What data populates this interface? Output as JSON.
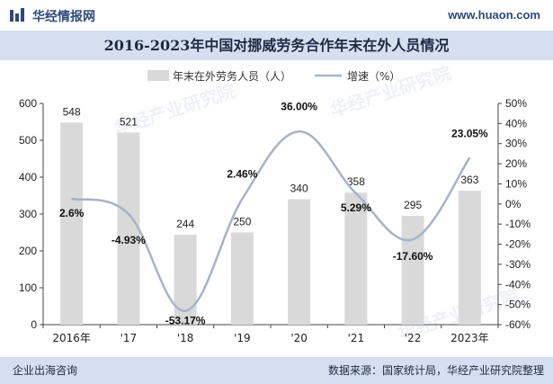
{
  "header": {
    "site_name": "华经情报网",
    "url": "www.huaon.com",
    "logo_icon": "bar-logo-icon"
  },
  "title": "2016-2023年中国对挪威劳务合作年末在外人员情况",
  "footer": {
    "left": "企业出海咨询",
    "right": "数据来源：国家统计局，华经产业研究院整理"
  },
  "watermark": "华经产业研究院",
  "colors": {
    "bar": "#d9d9d9",
    "line": "#a7b2cb",
    "title_bg": "#d6dfef",
    "footer_bg": "#d6dfef",
    "brand": "#2d4a7a"
  },
  "chart_data": {
    "type": "bar",
    "categories": [
      "2016年",
      "'17",
      "'18",
      "'19",
      "'20",
      "'21",
      "'22",
      "2023年"
    ],
    "series": [
      {
        "name": "年末在外劳务人员（人）",
        "type": "bar",
        "axis": "left",
        "values": [
          548,
          521,
          244,
          250,
          340,
          358,
          295,
          363
        ],
        "labels": [
          "548",
          "521",
          "244",
          "250",
          "340",
          "358",
          "295",
          "363"
        ]
      },
      {
        "name": "增速（%）",
        "type": "line",
        "axis": "right",
        "values": [
          2.6,
          -4.93,
          -53.17,
          2.46,
          36.0,
          5.29,
          -17.6,
          23.05
        ],
        "labels": [
          "2.6%",
          "-4.93%",
          "-53.17%",
          "2.46%",
          "36.00%",
          "5.29%",
          "-17.60%",
          "23.05%"
        ]
      }
    ],
    "ylim_left": [
      0,
      600
    ],
    "ylim_right": [
      -60,
      50
    ],
    "left_ticks": [
      "0",
      "100",
      "200",
      "300",
      "400",
      "500",
      "600"
    ],
    "right_ticks": [
      "-60%",
      "-50%",
      "-40%",
      "-30%",
      "-20%",
      "-10%",
      "0%",
      "10%",
      "20%",
      "30%",
      "40%",
      "50%"
    ],
    "legend_position": "top-center",
    "grid": false
  }
}
